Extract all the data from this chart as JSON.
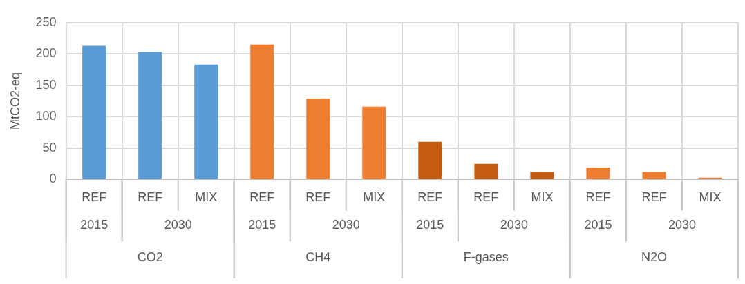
{
  "chart_data": {
    "type": "bar",
    "ylabel": "MtCO2-eq",
    "categories": [
      "REF",
      "REF",
      "MIX",
      "REF",
      "REF",
      "MIX",
      "REF",
      "REF",
      "MIX",
      "REF",
      "REF",
      "MIX"
    ],
    "series": [
      {
        "color": "#5b9bd5",
        "values": [
          213,
          203,
          183,
          null,
          null,
          null,
          null,
          null,
          null,
          null,
          null,
          null
        ]
      },
      {
        "color": "#ed7d31",
        "values": [
          null,
          null,
          null,
          215,
          129,
          116,
          null,
          null,
          null,
          null,
          null,
          null
        ]
      },
      {
        "color": "#c55a11",
        "values": [
          null,
          null,
          null,
          null,
          null,
          null,
          60,
          25,
          12,
          null,
          null,
          null
        ]
      },
      {
        "color": "#ed7d31",
        "values": [
          null,
          null,
          null,
          null,
          null,
          null,
          null,
          null,
          null,
          19,
          12,
          3
        ]
      }
    ],
    "stacked": true,
    "ylim": [
      0,
      250
    ],
    "yticks": [
      0,
      50,
      100,
      150,
      200,
      250
    ],
    "grid": true,
    "legend": false,
    "annotations": [
      "2015",
      "2030",
      "CO2",
      "2015",
      "2030",
      "CH4",
      "2015",
      "2030",
      "F-gases",
      "2015",
      "2030",
      "N2O"
    ]
  }
}
